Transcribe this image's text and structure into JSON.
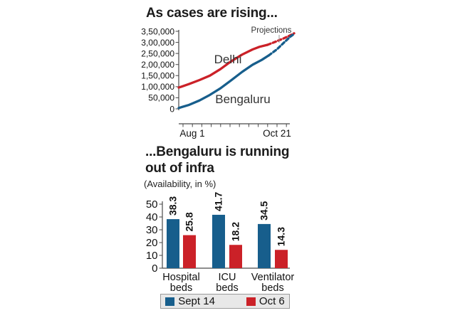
{
  "header": {
    "title": "As cases are rising..."
  },
  "infra_section": {
    "title_line1": "...Bengaluru is running",
    "title_line2": "out of infra",
    "subtitle": "(Availability, in %)"
  },
  "colors": {
    "blue": "#175e8c",
    "red": "#cb2128",
    "axis": "#4a4a4a",
    "text": "#111111",
    "legend_bg": "#e8e8e8",
    "legend_border": "#9a9a9a"
  },
  "chart_data": [
    {
      "type": "line",
      "title": "As cases are rising...",
      "annotation": "Projections",
      "x_axis": {
        "tick_labels": [
          "Aug 1",
          "Oct 21"
        ],
        "minor_tick_count": 12
      },
      "y_axis": {
        "ylim": [
          0,
          350000
        ],
        "tick_values": [
          0,
          50000,
          100000,
          150000,
          200000,
          250000,
          300000,
          350000
        ],
        "tick_labels": [
          "0",
          "50,000",
          "1,00,000",
          "1,50,000",
          "2,00,000",
          "2,50,000",
          "3,00,000",
          "3,50,000"
        ]
      },
      "series": [
        {
          "name": "Delhi",
          "color": "#cb2128",
          "solid": [
            [
              0,
              96000
            ],
            [
              9,
              112000
            ],
            [
              18,
              130000
            ],
            [
              27,
              150000
            ],
            [
              36,
              179000
            ],
            [
              45,
              213000
            ],
            [
              55,
              245000
            ],
            [
              64,
              268000
            ],
            [
              70,
              280000
            ],
            [
              77,
              289000
            ]
          ],
          "projection": [
            [
              77,
              289000
            ],
            [
              84,
              303000
            ],
            [
              90,
              316000
            ],
            [
              96,
              330000
            ],
            [
              100,
              341000
            ]
          ]
        },
        {
          "name": "Bengaluru",
          "color": "#175e8c",
          "solid": [
            [
              0,
              4000
            ],
            [
              9,
              18000
            ],
            [
              18,
              38000
            ],
            [
              27,
              63000
            ],
            [
              36,
              92000
            ],
            [
              45,
              127000
            ],
            [
              55,
              167000
            ],
            [
              64,
              199000
            ],
            [
              72,
              221000
            ],
            [
              78,
              241000
            ]
          ],
          "projection": [
            [
              78,
              241000
            ],
            [
              85,
              268000
            ],
            [
              91,
              298000
            ],
            [
              97,
              327000
            ],
            [
              100,
              338000
            ]
          ]
        }
      ]
    },
    {
      "type": "bar",
      "title": "...Bengaluru is running out of infra",
      "subtitle": "(Availability, in %)",
      "categories": [
        "Hospital beds",
        "ICU beds",
        "Ventilator beds"
      ],
      "categories_lines": [
        [
          "Hospital",
          "beds"
        ],
        [
          "ICU",
          "beds"
        ],
        [
          "Ventilator",
          "beds"
        ]
      ],
      "ylim": [
        0,
        50
      ],
      "ytick_values": [
        0,
        10,
        20,
        30,
        40,
        50
      ],
      "legend_position": "bottom",
      "series": [
        {
          "name": "Sept 14",
          "color": "#175e8c",
          "values": [
            38.3,
            41.7,
            34.5
          ]
        },
        {
          "name": "Oct 6",
          "color": "#cb2128",
          "values": [
            25.8,
            18.2,
            14.3
          ]
        }
      ]
    }
  ]
}
